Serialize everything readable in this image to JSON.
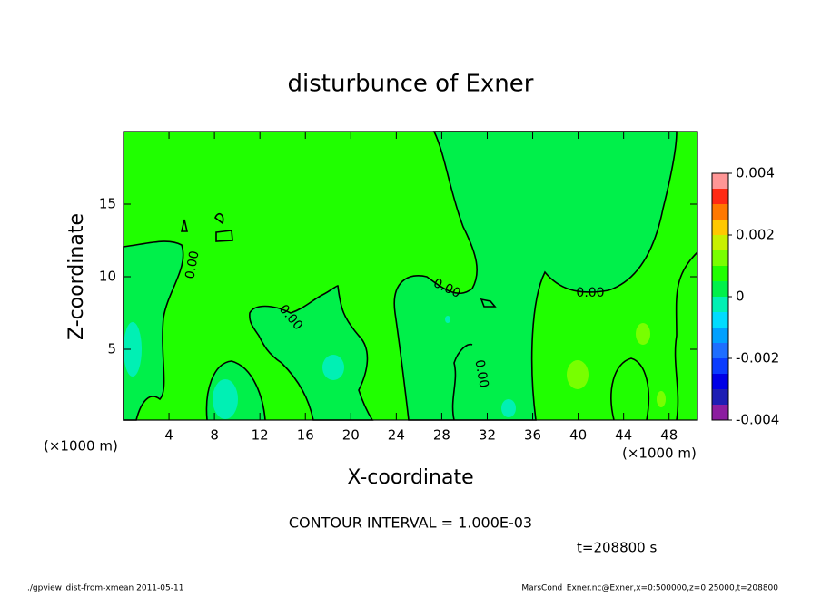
{
  "chart_data": {
    "type": "contour",
    "title": "disturbunce of Exner",
    "xlabel": "X-coordinate",
    "ylabel": "Z-coordinate",
    "xunit_left": "(×1000 m)",
    "xunit_right": "(×1000 m)",
    "xlim": [
      0,
      50.5
    ],
    "xticks": [
      4,
      8,
      12,
      16,
      20,
      24,
      28,
      32,
      36,
      40,
      44,
      48
    ],
    "ylim": [
      0.125,
      20
    ],
    "yticks": [
      5,
      10,
      15
    ],
    "colorbar": {
      "lim": [
        -0.004,
        0.004
      ],
      "ticks": [
        -0.004,
        -0.002,
        0,
        0.002,
        0.004
      ],
      "colors": [
        "#8c1ea0",
        "#1e1eb4",
        "#0000e6",
        "#0a3cff",
        "#1e6eff",
        "#00a0ff",
        "#00dcff",
        "#00f0b4",
        "#00f04a",
        "#20ff00",
        "#78ff00",
        "#c8f000",
        "#ffc800",
        "#ff7800",
        "#ff2a14",
        "#ff9696"
      ]
    },
    "contour_labels": [
      "0.00",
      "0.00",
      "0.00",
      "0.00",
      "0.00"
    ],
    "note": "CONTOUR INTERVAL = 1.000E-03",
    "time_label": "t=208800 s",
    "footer_left": "./gpview_dist-from-xmean  2011-05-11",
    "footer_right": "MarsCond_Exner.nc@Exner,x=0:500000,z=0:25000,t=208800"
  }
}
